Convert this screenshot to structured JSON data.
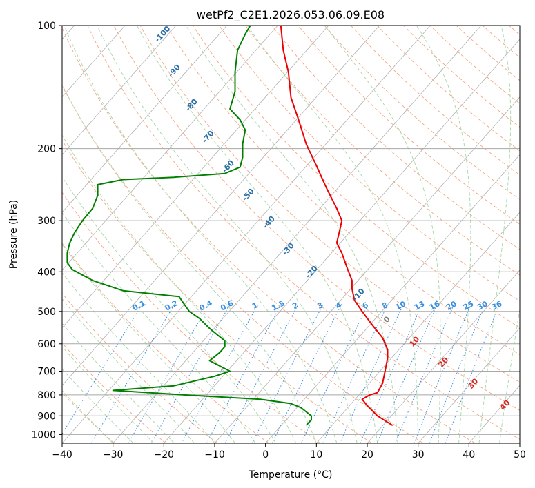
{
  "chart_data": {
    "type": "line",
    "title": "wetPf2_C2E1.2026.053.06.09.E08",
    "xlabel": "Temperature (°C)",
    "ylabel": "Pressure (hPa)",
    "xlim": [
      -40,
      50
    ],
    "ylim": [
      1050,
      100
    ],
    "y_scale": "log",
    "x_ticks": [
      "−40",
      "−30",
      "−20",
      "−10",
      "0",
      "10",
      "20",
      "30",
      "40",
      "50"
    ],
    "y_ticks": [
      "100",
      "200",
      "300",
      "400",
      "500",
      "600",
      "700",
      "800",
      "900",
      "1000"
    ],
    "grid": true,
    "series": [
      {
        "role": "temperature",
        "color": "#ee0000",
        "points": [
          [
            25,
            950
          ],
          [
            22,
            900
          ],
          [
            20,
            850
          ],
          [
            19,
            820
          ],
          [
            20.5,
            800
          ],
          [
            22,
            790
          ],
          [
            23,
            750
          ],
          [
            23.5,
            700
          ],
          [
            24,
            650
          ],
          [
            24,
            620
          ],
          [
            23,
            580
          ],
          [
            21,
            540
          ],
          [
            19,
            500
          ],
          [
            17.5,
            470
          ],
          [
            17,
            440
          ],
          [
            17,
            420
          ],
          [
            16,
            390
          ],
          [
            15,
            360
          ],
          [
            14,
            340
          ],
          [
            14.5,
            320
          ],
          [
            15,
            300
          ],
          [
            14,
            280
          ],
          [
            12,
            250
          ],
          [
            10,
            220
          ],
          [
            8,
            195
          ],
          [
            6.5,
            170
          ],
          [
            5,
            150
          ],
          [
            4.5,
            130
          ],
          [
            3.5,
            115
          ],
          [
            3,
            100
          ]
        ]
      },
      {
        "role": "dewpoint",
        "color": "#008000",
        "points": [
          [
            8,
            950
          ],
          [
            9,
            920
          ],
          [
            9,
            900
          ],
          [
            7,
            860
          ],
          [
            5,
            840
          ],
          [
            -1,
            820
          ],
          [
            -16,
            800
          ],
          [
            -30,
            780
          ],
          [
            -18,
            760
          ],
          [
            -14,
            740
          ],
          [
            -10,
            720
          ],
          [
            -7,
            700
          ],
          [
            -9,
            680
          ],
          [
            -11,
            660
          ],
          [
            -9,
            630
          ],
          [
            -8,
            610
          ],
          [
            -8,
            590
          ],
          [
            -9.5,
            570
          ],
          [
            -11,
            550
          ],
          [
            -13,
            520
          ],
          [
            -15,
            500
          ],
          [
            -16,
            480
          ],
          [
            -17,
            460
          ],
          [
            -28,
            445
          ],
          [
            -34,
            420
          ],
          [
            -38,
            395
          ],
          [
            -39,
            380
          ],
          [
            -39,
            360
          ],
          [
            -38.5,
            340
          ],
          [
            -37.5,
            320
          ],
          [
            -36,
            300
          ],
          [
            -34,
            280
          ],
          [
            -33,
            260
          ],
          [
            -33,
            245
          ],
          [
            -28,
            238
          ],
          [
            -18,
            235
          ],
          [
            -8,
            230
          ],
          [
            -5,
            222
          ],
          [
            -4.5,
            210
          ],
          [
            -4.5,
            195
          ],
          [
            -4,
            180
          ],
          [
            -5,
            170
          ],
          [
            -7,
            160
          ],
          [
            -6,
            145
          ],
          [
            -6,
            130
          ],
          [
            -5.5,
            115
          ],
          [
            -4,
            105
          ],
          [
            -3,
            100
          ]
        ]
      }
    ],
    "dry_adiabat_labels": [
      "-100",
      "-90",
      "-80",
      "-70",
      "-60",
      "-50",
      "-40",
      "-30",
      "-20",
      "-10"
    ],
    "mixing_ratio_labels": [
      "0.1",
      "0.2",
      "0.4",
      "0.6",
      "1",
      "1.5",
      "2",
      "3",
      "4",
      "6",
      "8",
      "10",
      "13",
      "16",
      "20",
      "25",
      "30",
      "36"
    ],
    "moist_adiabat_labels": [
      "0",
      "10",
      "20",
      "30",
      "40"
    ]
  },
  "colors": {
    "temperature": "#ee0000",
    "dewpoint": "#008000",
    "isotherm": "#b0b0b0",
    "dry_adiabat": "#f4a582",
    "moist_adiabat": "#a6d6a6",
    "mixing_ratio": "#3a8fe0",
    "dry_label": "#2a6fa8",
    "moist_label": "#d62728",
    "zero_label": "#777777"
  }
}
